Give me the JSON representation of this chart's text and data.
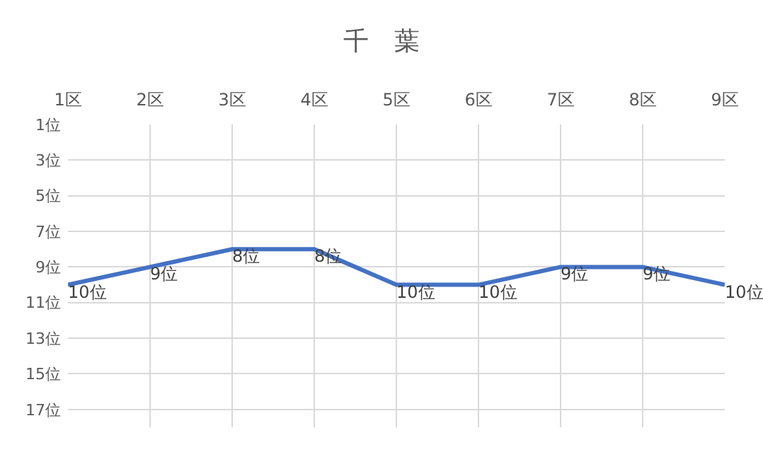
{
  "chart_data": {
    "type": "line",
    "title": "千　葉",
    "categories": [
      "1区",
      "2区",
      "3区",
      "4区",
      "5区",
      "6区",
      "7区",
      "8区",
      "9区"
    ],
    "series": [
      {
        "color": "#4472c4",
        "values": [
          10,
          9,
          8,
          8,
          10,
          10,
          9,
          9,
          10
        ],
        "value_labels": [
          "10位",
          "9位",
          "8位",
          "8位",
          "10位",
          "10位",
          "9位",
          "9位",
          "10位"
        ]
      }
    ],
    "ylim": [
      18,
      1
    ],
    "yticks": [
      {
        "value": 1,
        "label": "1位"
      },
      {
        "value": 3,
        "label": "3位"
      },
      {
        "value": 5,
        "label": "5位"
      },
      {
        "value": 7,
        "label": "7位"
      },
      {
        "value": 9,
        "label": "9位"
      },
      {
        "value": 11,
        "label": "11位"
      },
      {
        "value": 13,
        "label": "13位"
      },
      {
        "value": 15,
        "label": "15位"
      },
      {
        "value": 17,
        "label": "17位"
      }
    ],
    "grid": true,
    "marker": "none",
    "line_style": "solid"
  }
}
